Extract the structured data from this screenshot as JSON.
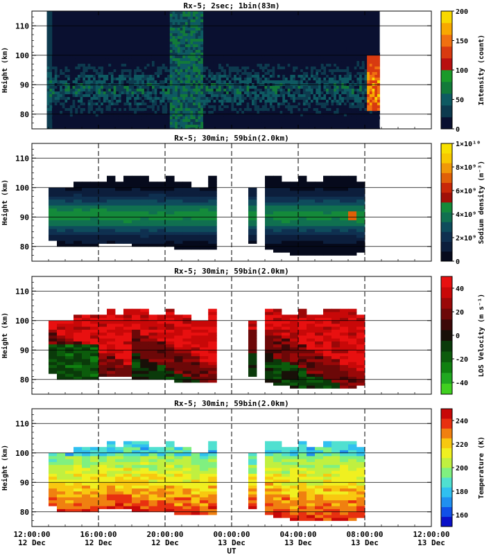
{
  "chart_data": {
    "type": "heatmap",
    "x_axis": {
      "label": "UT",
      "range_hours": [
        0,
        24
      ],
      "ticks": [
        {
          "time": "12:00:00",
          "date": "12 Dec"
        },
        {
          "time": "16:00:00",
          "date": "12 Dec"
        },
        {
          "time": "20:00:00",
          "date": "12 Dec"
        },
        {
          "time": "00:00:00",
          "date": "13 Dec"
        },
        {
          "time": "04:00:00",
          "date": "13 Dec"
        },
        {
          "time": "08:00:00",
          "date": "13 Dec"
        },
        {
          "time": "12:00:00",
          "date": "13 Dec"
        }
      ]
    },
    "panels": [
      {
        "title": "Rx-5;  2sec; 1bin(83m)",
        "ylabel": "Height (km)",
        "ylim": [
          75,
          115
        ],
        "yticks": [
          "80",
          "90",
          "100",
          "110"
        ],
        "colorbar_label": "Intensity (count)",
        "colorbar_ticks": [
          "0",
          "50",
          "100",
          "150",
          "200"
        ],
        "colorbar_range": [
          0,
          200
        ],
        "colors": [
          "#0a1030",
          "#0d3a4e",
          "#0e5a62",
          "#127a3a",
          "#1a9a2a",
          "#b81010",
          "#d83a10",
          "#f07010",
          "#f8a800",
          "#f8d800"
        ],
        "data_time_range": [
          0.9,
          20.9
        ],
        "bright_band_time_range": [
          8.3,
          10.3
        ]
      },
      {
        "title": "Rx-5; 30min; 59bin(2.0km)",
        "ylabel": "Height (km)",
        "ylim": [
          75,
          115
        ],
        "yticks": [
          "80",
          "90",
          "100",
          "110"
        ],
        "colorbar_label": "Sodium density (m⁻³)",
        "colorbar_ticks": [
          "0",
          "2×10⁹",
          "4×10⁹",
          "6×10⁹",
          "8×10⁹",
          "1×10¹⁰"
        ],
        "colorbar_range": [
          0,
          10000000000
        ],
        "colors": [
          "#060a1c",
          "#0c1e3c",
          "#0f3050",
          "#0e4c5c",
          "#107050",
          "#148a3a",
          "#a01008",
          "#c82808",
          "#e06008",
          "#f09808",
          "#f8c800",
          "#f8e000"
        ],
        "vertical_dashed_lines_hours": [
          4,
          8,
          12,
          16,
          20
        ]
      },
      {
        "title": "Rx-5; 30min; 59bin(2.0km)",
        "ylabel": "Height (km)",
        "ylim": [
          75,
          115
        ],
        "yticks": [
          "80",
          "90",
          "100",
          "110"
        ],
        "colorbar_label": "LOS Velocity (m s⁻¹)",
        "colorbar_ticks": [
          "-40",
          "-20",
          "0",
          "20",
          "40"
        ],
        "colorbar_range": [
          -50,
          50
        ],
        "colors": [
          "#40d020",
          "#20a820",
          "#108010",
          "#0c5c0c",
          "#0a3a0a",
          "#181008",
          "#3c0808",
          "#6c0808",
          "#9a0808",
          "#c80808",
          "#e81010"
        ],
        "vertical_dashed_lines_hours": [
          4,
          8,
          12,
          16,
          20
        ]
      },
      {
        "title": "Rx-5; 30min; 59bin(2.0km)",
        "ylabel": "Height (km)",
        "ylim": [
          75,
          115
        ],
        "yticks": [
          "80",
          "90",
          "100",
          "110"
        ],
        "colorbar_label": "Temperature (K)",
        "colorbar_ticks": [
          "160",
          "180",
          "200",
          "220",
          "240"
        ],
        "colorbar_range": [
          150,
          250
        ],
        "colors": [
          "#0a10c8",
          "#1050e8",
          "#2090f0",
          "#30c0f0",
          "#50e0d0",
          "#80f080",
          "#c0f040",
          "#f0f020",
          "#f8c810",
          "#f08010",
          "#e83010",
          "#c80808"
        ],
        "vertical_dashed_lines_hours": [
          4,
          8,
          12,
          16,
          20
        ]
      }
    ],
    "observation_segments": [
      {
        "start_hour": 1.0,
        "end_hour": 6.0,
        "top_km": [
          100,
          100,
          100,
          102,
          102,
          102,
          102,
          104,
          102,
          104
        ],
        "bottom_km": [
          82,
          80,
          80,
          80,
          80,
          80,
          81,
          81,
          81,
          81
        ]
      },
      {
        "start_hour": 6.0,
        "end_hour": 11.1,
        "top_km": [
          104,
          104,
          102,
          102,
          104,
          102,
          102,
          100,
          100,
          104
        ],
        "bottom_km": [
          80,
          80,
          80,
          80,
          80,
          79,
          79,
          79,
          79,
          79
        ]
      },
      {
        "start_hour": 13.0,
        "end_hour": 13.5,
        "top_km": [
          100
        ],
        "bottom_km": [
          81
        ]
      },
      {
        "start_hour": 14.0,
        "end_hour": 20.0,
        "top_km": [
          104,
          104,
          102,
          102,
          104,
          102,
          102,
          104,
          104,
          104,
          104,
          102
        ],
        "bottom_km": [
          79,
          78,
          78,
          77,
          77,
          77,
          77,
          77,
          77,
          77,
          77,
          78
        ]
      }
    ]
  }
}
